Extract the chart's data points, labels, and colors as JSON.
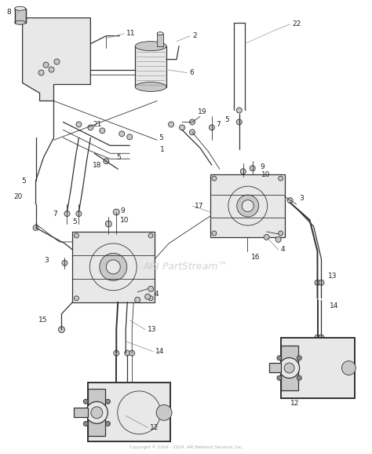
{
  "bg_color": "#ffffff",
  "line_color": "#333333",
  "label_color": "#222222",
  "watermark": "ARI PartStream™",
  "watermark_color": "#c8c8c8",
  "footer": "Copyright © 2004 - 2024, ARI Network Services, Inc.",
  "figsize": [
    4.74,
    5.78
  ],
  "dpi": 100,
  "lw_thin": 0.6,
  "lw_med": 0.9,
  "lw_thick": 1.4,
  "gray_light": "#e8e8e8",
  "gray_mid": "#c8c8c8",
  "gray_dark": "#888888"
}
